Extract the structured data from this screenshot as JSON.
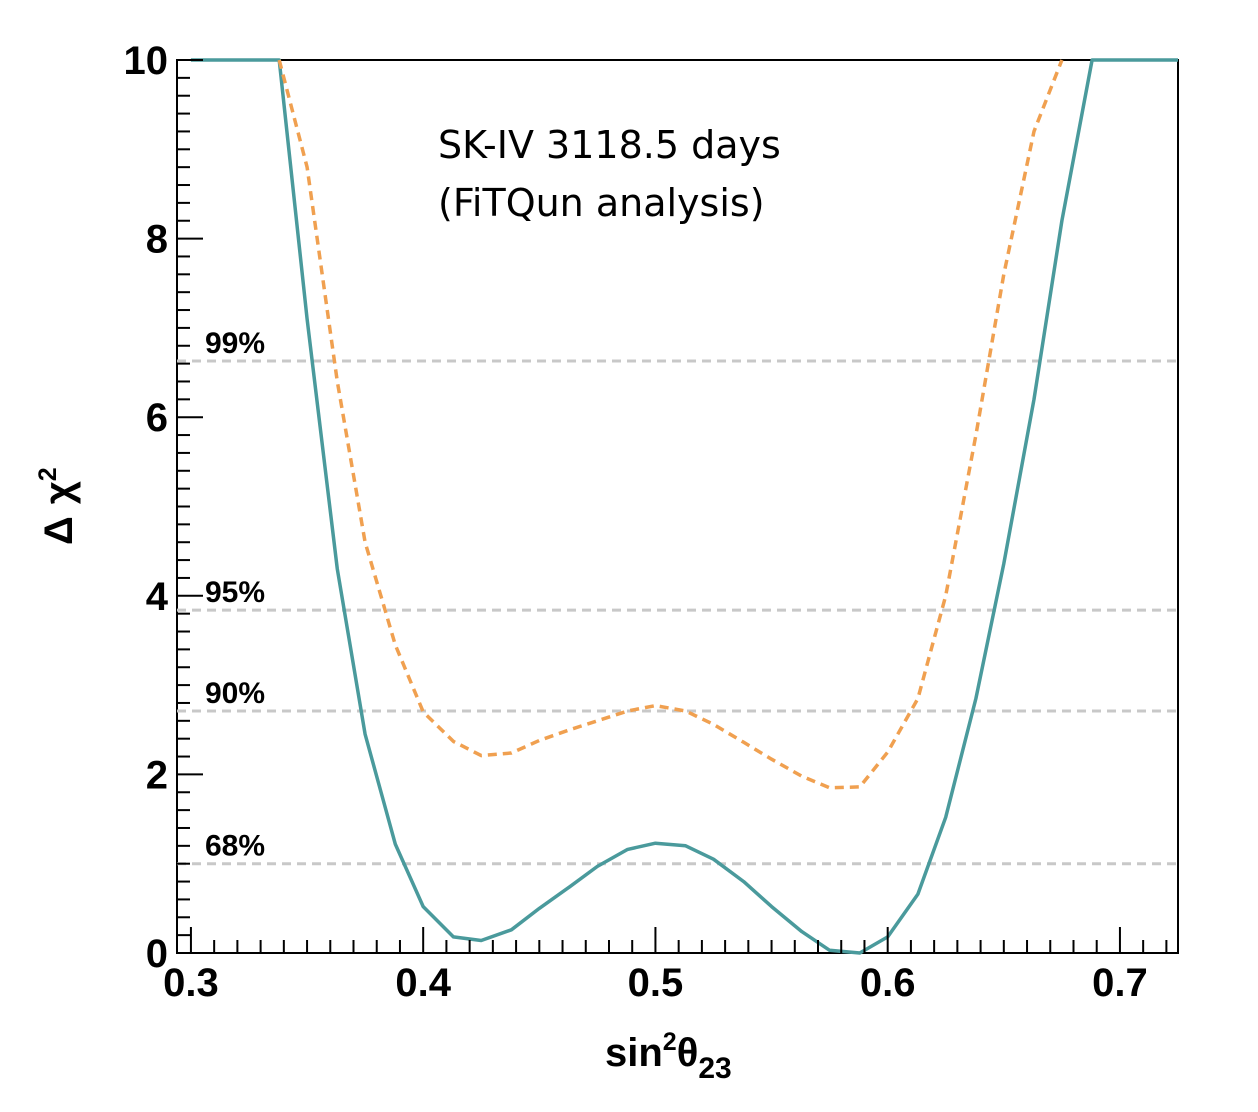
{
  "chart_data": {
    "type": "line",
    "xlabel": {
      "base": "sin",
      "sup": "2",
      "theta": "θ",
      "sub": "23"
    },
    "ylabel": {
      "delta": "Δ",
      "chi": "χ",
      "sup": "2"
    },
    "xlim": [
      0.294,
      0.725
    ],
    "ylim": [
      0,
      10
    ],
    "xticks": [
      "0.3",
      "0.4",
      "0.5",
      "0.6",
      "0.7"
    ],
    "yticks": [
      "0",
      "2",
      "4",
      "6",
      "8",
      "10"
    ],
    "annotations": [
      "SK-IV 3118.5 days",
      "(FiTQun analysis)"
    ],
    "confidence_levels": [
      {
        "label": "99%",
        "value": 6.63
      },
      {
        "label": "95%",
        "value": 3.84
      },
      {
        "label": "90%",
        "value": 2.71
      },
      {
        "label": "68%",
        "value": 1.0
      }
    ],
    "series": [
      {
        "style": "solid",
        "color": "#4a9a9c",
        "x": [
          0.3,
          0.338,
          0.35,
          0.363,
          0.375,
          0.388,
          0.4,
          0.413,
          0.425,
          0.438,
          0.45,
          0.463,
          0.475,
          0.488,
          0.5,
          0.513,
          0.525,
          0.538,
          0.55,
          0.563,
          0.575,
          0.588,
          0.6,
          0.613,
          0.625,
          0.638,
          0.65,
          0.663,
          0.675,
          0.688,
          0.7,
          0.725
        ],
        "y": [
          10.0,
          10.0,
          7.1,
          4.3,
          2.45,
          1.22,
          0.52,
          0.18,
          0.14,
          0.26,
          0.5,
          0.74,
          0.97,
          1.16,
          1.23,
          1.2,
          1.05,
          0.8,
          0.52,
          0.24,
          0.03,
          0.0,
          0.18,
          0.66,
          1.52,
          2.85,
          4.36,
          6.2,
          8.2,
          10.0,
          10.0,
          10.0
        ]
      },
      {
        "style": "dashed",
        "color": "#f0a050",
        "x": [
          0.338,
          0.35,
          0.363,
          0.375,
          0.388,
          0.4,
          0.413,
          0.425,
          0.438,
          0.45,
          0.463,
          0.475,
          0.488,
          0.5,
          0.513,
          0.525,
          0.538,
          0.55,
          0.563,
          0.575,
          0.588,
          0.6,
          0.613,
          0.625,
          0.638,
          0.65,
          0.663,
          0.675
        ],
        "y": [
          10.0,
          8.8,
          6.4,
          4.6,
          3.45,
          2.7,
          2.37,
          2.21,
          2.24,
          2.38,
          2.5,
          2.6,
          2.71,
          2.77,
          2.71,
          2.56,
          2.36,
          2.17,
          1.98,
          1.85,
          1.86,
          2.25,
          2.85,
          4.0,
          5.8,
          7.6,
          9.2,
          10.0
        ]
      }
    ]
  }
}
